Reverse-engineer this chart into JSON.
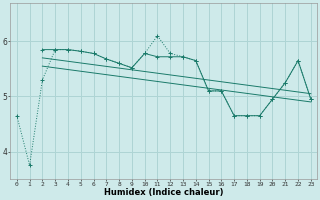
{
  "title": "",
  "xlabel": "Humidex (Indice chaleur)",
  "ylabel": "",
  "background_color": "#ceeaea",
  "grid_color": "#aed4d4",
  "line_color": "#1a7a6a",
  "x_ticks": [
    0,
    1,
    2,
    3,
    4,
    5,
    6,
    7,
    8,
    9,
    10,
    11,
    12,
    13,
    14,
    15,
    16,
    17,
    18,
    19,
    20,
    21,
    22,
    23
  ],
  "y_ticks": [
    4,
    5,
    6
  ],
  "ylim": [
    3.5,
    6.7
  ],
  "xlim": [
    -0.5,
    23.5
  ],
  "series1_x": [
    0,
    1,
    2,
    3,
    4,
    5,
    6,
    7,
    8,
    9,
    10,
    11,
    12,
    13,
    14,
    15,
    16,
    17,
    18,
    19,
    20,
    21,
    22,
    23
  ],
  "series1_y": [
    4.65,
    3.75,
    5.3,
    5.85,
    5.85,
    5.82,
    5.78,
    5.68,
    5.6,
    5.52,
    5.78,
    6.1,
    5.78,
    5.72,
    5.65,
    5.1,
    5.1,
    4.65,
    4.65,
    4.65,
    4.95,
    5.25,
    5.65,
    4.95
  ],
  "series2_x": [
    2,
    3,
    4,
    5,
    6,
    7,
    8,
    9,
    10,
    11,
    12,
    13,
    14,
    15,
    16,
    17,
    18,
    19,
    20,
    21,
    22,
    23
  ],
  "series2_y": [
    5.85,
    5.85,
    5.85,
    5.82,
    5.78,
    5.68,
    5.6,
    5.52,
    5.78,
    5.72,
    5.72,
    5.72,
    5.65,
    5.1,
    5.1,
    4.65,
    4.65,
    4.65,
    4.95,
    5.25,
    5.65,
    4.95
  ],
  "trend1_x": [
    2,
    23
  ],
  "trend1_y": [
    5.55,
    4.9
  ],
  "trend2_x": [
    2,
    23
  ],
  "trend2_y": [
    5.7,
    5.05
  ]
}
